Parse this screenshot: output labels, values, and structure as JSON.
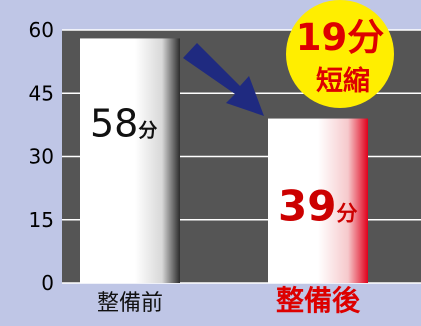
{
  "chart_data": {
    "type": "bar",
    "categories": [
      "整備前",
      "整備後"
    ],
    "values": [
      58,
      39
    ],
    "value_labels": [
      {
        "number": "58",
        "unit": "分"
      },
      {
        "number": "39",
        "unit": "分"
      }
    ],
    "ylim": [
      0,
      60
    ],
    "yticks": [
      "0",
      "15",
      "30",
      "45",
      "60"
    ],
    "grid": true,
    "badge": {
      "line1": "19分",
      "line2": "短縮"
    },
    "colors": {
      "background": "#bfc6e6",
      "plot": "#555555",
      "before_bar_edge": "#2c2c2c",
      "after_bar_edge": "#e0001b",
      "after_value": "#cc0000",
      "after_label": "#dd0000",
      "badge": "#ffee00",
      "badge_text": "#dd0000",
      "arrow": "#1f2a80"
    }
  }
}
